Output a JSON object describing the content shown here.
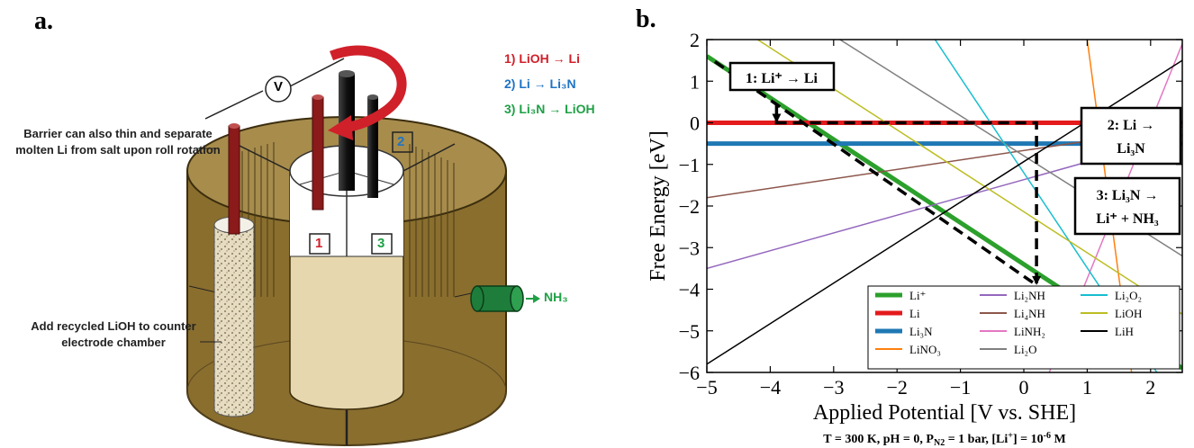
{
  "panels": {
    "a": "a.",
    "b": "b."
  },
  "schematic": {
    "barrier_note": "Barrier can also thin and separate molten Li from salt upon roll rotation",
    "recycle_note": "Add recycled LiOH to counter electrode chamber",
    "voltmeter": "V",
    "steps": [
      "1) LiOH → Li",
      "2) Li → Li₃N",
      "3) Li₃N → LiOH"
    ],
    "chambers": [
      "1",
      "2",
      "3"
    ],
    "product": "NH₃",
    "colors": {
      "step1": "#d0202a",
      "step2": "#1f73c4",
      "step3": "#1fa046",
      "salt": "#8a6e2e",
      "electrode": "#8b1a1a",
      "drum": "#111111"
    }
  },
  "chart_data": {
    "type": "line",
    "xlabel": "Applied Potential [V vs. SHE]",
    "ylabel": "Free Energy [eV]",
    "caption": "T = 300 K, pH = 0, Pₙ₂ = 1 bar, [Li⁺] = 10⁻⁶ M",
    "xlim": [
      -5,
      2.5
    ],
    "ylim": [
      -6,
      2
    ],
    "xticks": [
      -5,
      -4,
      -3,
      -2,
      -1,
      0,
      1,
      2
    ],
    "xtick_labels": [
      "−5",
      "−4",
      "−3",
      "−2",
      "−1",
      "0",
      "1",
      "2"
    ],
    "yticks": [
      2,
      1,
      0,
      -1,
      -2,
      -3,
      -4,
      -5,
      -6
    ],
    "ytick_labels": [
      "2",
      "1",
      "0",
      "−1",
      "−2",
      "−3",
      "−4",
      "−5",
      "−6"
    ],
    "legend_position": "bottom-right",
    "series": [
      {
        "name": "Li⁺",
        "color": "#2ca02c",
        "width": 5,
        "points": [
          [
            -5,
            1.6
          ],
          [
            2.5,
            -5.9
          ]
        ]
      },
      {
        "name": "Li",
        "color": "#e41a1c",
        "width": 5,
        "points": [
          [
            -5,
            0.0
          ],
          [
            2.5,
            0.0
          ]
        ]
      },
      {
        "name": "Li₃N",
        "color": "#1f78b4",
        "width": 5,
        "points": [
          [
            -5,
            -0.5
          ],
          [
            2.5,
            -0.5
          ]
        ]
      },
      {
        "name": "LiNO₃",
        "color": "#ff7f0e",
        "width": 1.5,
        "points": [
          [
            1.0,
            2.0
          ],
          [
            1.7,
            -6.0
          ]
        ]
      },
      {
        "name": "Li₂NH",
        "color": "#9467bd",
        "width": 1.5,
        "points": [
          [
            -5,
            -3.5
          ],
          [
            2.5,
            -0.3
          ]
        ]
      },
      {
        "name": "Li₄NH",
        "color": "#8c564b",
        "width": 1.5,
        "points": [
          [
            -5,
            -1.8
          ],
          [
            2.5,
            -0.1
          ]
        ]
      },
      {
        "name": "LiNH₂",
        "color": "#e377c2",
        "width": 1.5,
        "points": [
          [
            0.4,
            -6.0
          ],
          [
            2.5,
            1.9
          ]
        ]
      },
      {
        "name": "Li₂O",
        "color": "#7f7f7f",
        "width": 1.5,
        "points": [
          [
            -2.9,
            2.0
          ],
          [
            2.5,
            -3.2
          ]
        ]
      },
      {
        "name": "Li₂O₂",
        "color": "#17becf",
        "width": 1.5,
        "points": [
          [
            -1.4,
            2.0
          ],
          [
            2.1,
            -6.0
          ]
        ]
      },
      {
        "name": "LiOH",
        "color": "#bcbd22",
        "width": 1.5,
        "points": [
          [
            -4.2,
            2.0
          ],
          [
            2.5,
            -4.6
          ]
        ]
      },
      {
        "name": "LiH",
        "color": "#000000",
        "width": 1.5,
        "points": [
          [
            -5,
            -5.8
          ],
          [
            2.5,
            1.5
          ]
        ]
      }
    ],
    "pathway": {
      "points": [
        [
          -3.9,
          0.0
        ],
        [
          -3.9,
          0.42
        ],
        [
          -3.9,
          0.0
        ],
        [
          0.2,
          0.0
        ],
        [
          0.2,
          -3.9
        ],
        [
          -4.9,
          1.5
        ]
      ],
      "style": "dashed"
    },
    "annotations": [
      {
        "label": "1: Li⁺ → Li"
      },
      {
        "label": "2: Li → Li₃N"
      },
      {
        "label": "3: Li₃N → Li⁺ + NH₃"
      }
    ]
  }
}
